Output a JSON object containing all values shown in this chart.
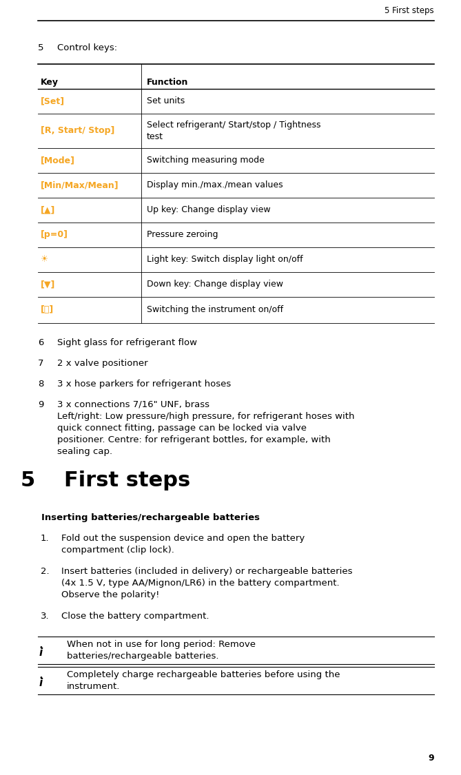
{
  "bg_color": "#ffffff",
  "text_color": "#000000",
  "orange_color": "#f5a623",
  "header_color": "#f5a623",
  "page_width": 6.69,
  "page_height": 11.25,
  "header_text": "5 First steps",
  "section5_label": "5",
  "section5_title": "Control keys:",
  "table_col1_header": "Key",
  "table_col2_header": "Function",
  "table_rows": [
    {
      "key": "[Set]",
      "function": "Set units",
      "key_orange": true
    },
    {
      "key": "[R, Start/ Stop]",
      "function": "Select refrigerant/ Start/stop / Tightness\ntest",
      "key_orange": true
    },
    {
      "key": "[Mode]",
      "function": "Switching measuring mode",
      "key_orange": true
    },
    {
      "key": "[Min/Max/Mean]",
      "function": "Display min./max./mean values",
      "key_orange": true
    },
    {
      "key": "[▲]",
      "function": "Up key: Change display view",
      "key_orange": true
    },
    {
      "key": "[p=0]",
      "function": "Pressure zeroing",
      "key_orange": true
    },
    {
      "key": "☀",
      "function": "Light key: Switch display light on/off",
      "key_orange": true
    },
    {
      "key": "[▼]",
      "function": "Down key: Change display view",
      "key_orange": true
    },
    {
      "key": "[⏻]",
      "function": "Switching the instrument on/off",
      "key_orange": true
    }
  ],
  "numbered_items": [
    {
      "num": "6",
      "text": "Sight glass for refrigerant flow"
    },
    {
      "num": "7",
      "text": "2 x valve positioner"
    },
    {
      "num": "8",
      "text": "3 x hose parkers for refrigerant hoses"
    },
    {
      "num": "9",
      "text": "3 x connections 7/16\" UNF, brass\nLeft/right: Low pressure/high pressure, for refrigerant hoses with\nquick connect fitting, passage can be locked via valve\npositioner. Centre: for refrigerant bottles, for example, with\nsealing cap."
    }
  ],
  "chapter_num": "5",
  "chapter_title": "First steps",
  "subsection_title": "Inserting batteries/rechargeable batteries",
  "steps": [
    {
      "num": "1.",
      "text": "Fold out the suspension device and open the battery\ncompartment (clip lock)."
    },
    {
      "num": "2.",
      "text": "Insert batteries (included in delivery) or rechargeable batteries\n(4x 1.5 V, type AA/Mignon/LR6) in the battery compartment.\nObserve the polarity!"
    },
    {
      "num": "3.",
      "text": "Close the battery compartment."
    }
  ],
  "notes": [
    "When not in use for long period: Remove\nbatteries/rechargeable batteries.",
    "Completely charge rechargeable batteries before using the\ninstrument."
  ],
  "page_number": "9",
  "font_family": "DejaVu Sans"
}
